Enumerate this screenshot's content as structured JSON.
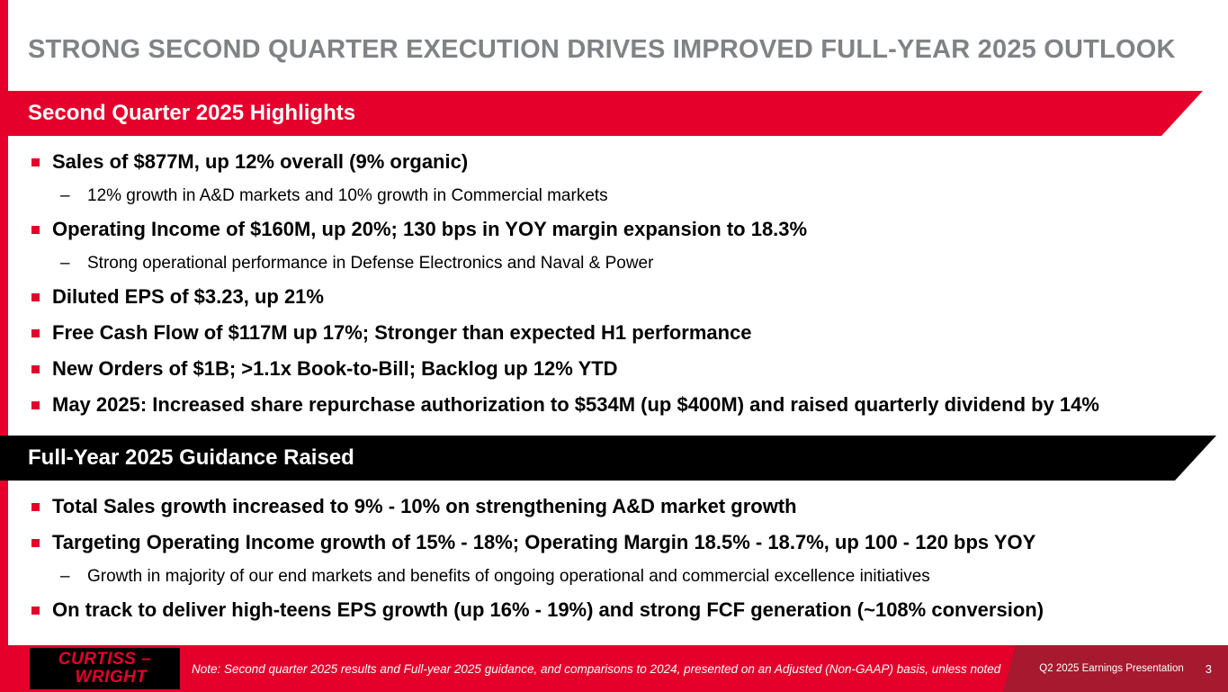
{
  "title": "STRONG SECOND QUARTER EXECUTION DRIVES IMPROVED FULL-YEAR 2025 OUTLOOK",
  "highlights": {
    "banner": "Second Quarter 2025 Highlights",
    "items": [
      {
        "level": 1,
        "text": "Sales of $877M, up 12% overall (9% organic)"
      },
      {
        "level": 2,
        "text": "12% growth in A&D markets and 10% growth in Commercial markets"
      },
      {
        "level": 1,
        "text": "Operating Income of $160M, up 20%; 130 bps in YOY margin expansion to 18.3%"
      },
      {
        "level": 2,
        "text": "Strong operational performance in Defense Electronics and Naval & Power"
      },
      {
        "level": 1,
        "text": "Diluted EPS of $3.23, up 21%"
      },
      {
        "level": 1,
        "text": "Free Cash Flow of $117M up 17%; Stronger than expected H1 performance"
      },
      {
        "level": 1,
        "text": "New Orders of $1B; >1.1x Book-to-Bill; Backlog up 12% YTD"
      },
      {
        "level": 1,
        "text": "May 2025: Increased share repurchase authorization to $534M (up $400M) and raised quarterly dividend by 14%"
      }
    ]
  },
  "guidance": {
    "banner": "Full-Year 2025 Guidance Raised",
    "items": [
      {
        "level": 1,
        "text": "Total Sales growth increased to 9% - 10% on strengthening A&D market growth"
      },
      {
        "level": 1,
        "text": "Targeting Operating Income growth of 15% - 18%; Operating Margin 18.5% - 18.7%, up 100 - 120 bps YOY"
      },
      {
        "level": 2,
        "text": "Growth in majority of our end markets and benefits of ongoing operational and commercial excellence initiatives"
      },
      {
        "level": 1,
        "text": "On track to deliver high-teens EPS growth (up 16% - 19%) and strong FCF generation (~108% conversion)"
      }
    ]
  },
  "footer": {
    "logo_line1": "CURTISS –",
    "logo_line2": "WRIGHT",
    "note": "Note: Second quarter 2025 results and Full-year 2025 guidance, and comparisons to 2024, presented on an Adjusted (Non-GAAP) basis, unless noted",
    "deck_label": "Q2 2025 Earnings Presentation",
    "page_number": "3"
  },
  "colors": {
    "accent_red": "#E4002B",
    "footer_dark_red": "#A6192E",
    "title_gray": "#808285",
    "banner_black": "#000000"
  }
}
